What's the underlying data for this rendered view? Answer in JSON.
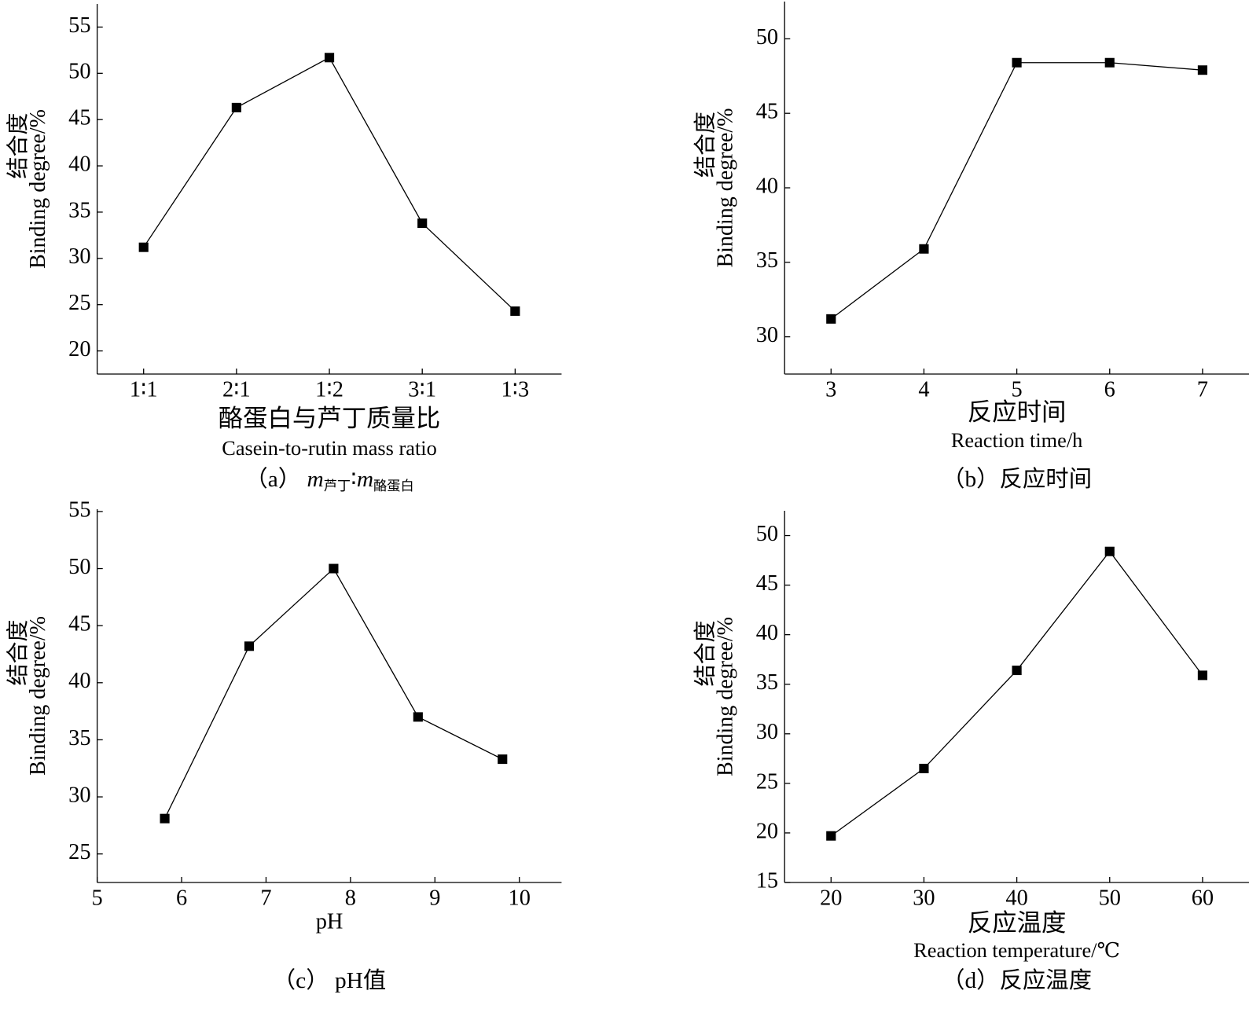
{
  "chart_data": [
    {
      "type": "line",
      "categories": [
        "1∶1",
        "2∶1",
        "1∶2",
        "3∶1",
        "1∶3"
      ],
      "series": [
        {
          "color": "#000000",
          "values": [
            31.2,
            46.3,
            51.7,
            33.8,
            24.3
          ]
        }
      ],
      "ylim": [
        17.5,
        57.5
      ],
      "yticks": [
        20,
        25,
        30,
        35,
        40,
        45,
        50,
        55
      ],
      "ylabel_cn": "结合度",
      "ylabel": "Binding degree/%",
      "xlabel_cn": "酪蛋白与芦丁质量比",
      "xlabel": "Casein-to-rutin mass ratio",
      "caption": [
        {
          "text": "（a） "
        },
        {
          "text": "m",
          "italic": true
        },
        {
          "text": "芦丁",
          "sub": true
        },
        {
          "text": "∶"
        },
        {
          "text": "m",
          "italic": true
        },
        {
          "text": "酪蛋白",
          "sub": true
        }
      ]
    },
    {
      "type": "line",
      "x": [
        3,
        4,
        5,
        6,
        7
      ],
      "series": [
        {
          "color": "#000000",
          "values": [
            31.2,
            35.9,
            48.4,
            48.4,
            47.9
          ]
        }
      ],
      "xlim": [
        2.5,
        7.5
      ],
      "xticks": [
        3,
        4,
        5,
        6,
        7
      ],
      "ylim": [
        27.5,
        52.5
      ],
      "yticks": [
        30,
        35,
        40,
        45,
        50
      ],
      "ylabel_cn": "结合度",
      "ylabel": "Binding degree/%",
      "xlabel_cn": "反应时间",
      "xlabel": "Reaction time/h",
      "caption": [
        {
          "text": "（b）反应时间"
        }
      ]
    },
    {
      "type": "line",
      "x": [
        5.8,
        6.8,
        7.8,
        8.8,
        9.8
      ],
      "series": [
        {
          "color": "#000000",
          "values": [
            28.1,
            43.2,
            50.0,
            37.0,
            33.3
          ]
        }
      ],
      "xlim": [
        5,
        10.5
      ],
      "xticks": [
        5,
        6,
        7,
        8,
        9,
        10
      ],
      "ylim": [
        22.5,
        55.2
      ],
      "yticks": [
        25,
        30,
        35,
        40,
        45,
        50,
        55
      ],
      "ylabel_cn": "结合度",
      "ylabel": "Binding degree/%",
      "xlabel": "pH",
      "caption": [
        {
          "text": "（c） pH值"
        }
      ]
    },
    {
      "type": "line",
      "x": [
        20,
        30,
        40,
        50,
        60
      ],
      "series": [
        {
          "color": "#000000",
          "values": [
            19.7,
            26.5,
            36.4,
            48.4,
            35.9
          ]
        }
      ],
      "xlim": [
        15,
        65
      ],
      "xticks": [
        20,
        30,
        40,
        50,
        60
      ],
      "ylim": [
        15,
        52.5
      ],
      "yticks": [
        15,
        20,
        25,
        30,
        35,
        40,
        45,
        50
      ],
      "ylabel_cn": "结合度",
      "ylabel": "Binding degree/%",
      "xlabel_cn": "反应温度",
      "xlabel": "Reaction temperature/℃",
      "caption": [
        {
          "text": "（d）反应温度"
        }
      ]
    }
  ]
}
